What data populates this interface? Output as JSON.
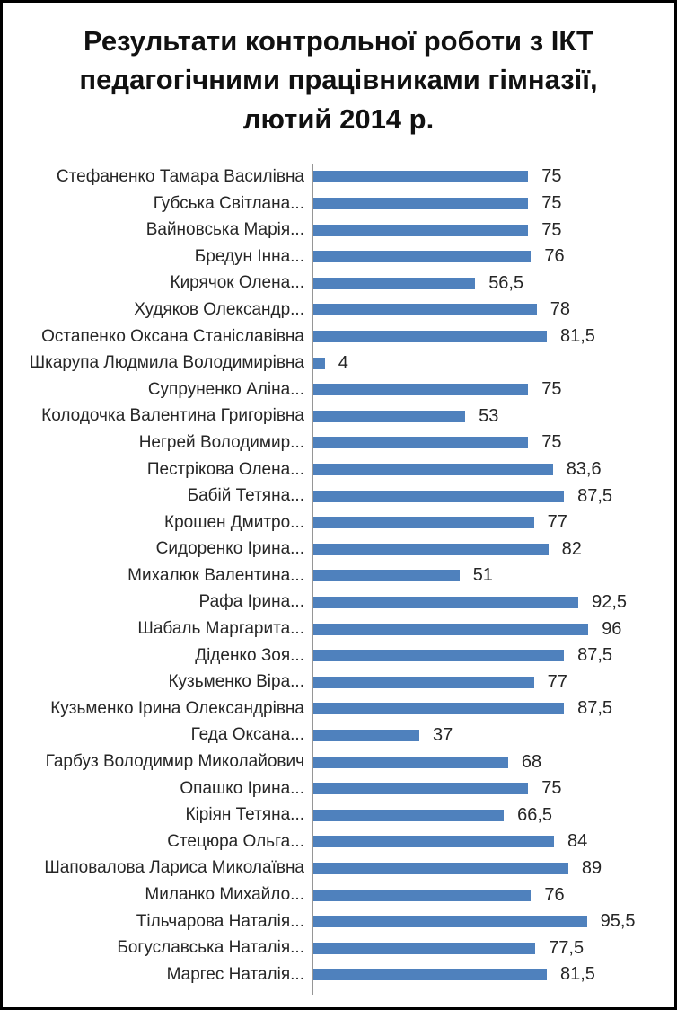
{
  "chart_data": {
    "type": "bar",
    "orientation": "horizontal",
    "title": "Результати контрольної роботи з ІКТ педагогічними працівниками гімназії, лютий 2014 р.",
    "categories": [
      "Стефаненко Тамара Василівна",
      "Губська Світлана...",
      "Вайновська Марія...",
      "Бредун Інна...",
      "Кирячок Олена...",
      "Худяков Олександр...",
      "Остапенко Оксана Станіславівна",
      "Шкарупа Людмила Володимирівна",
      "Супруненко Аліна...",
      "Колодочка Валентина Григорівна",
      "Негрей Володимир...",
      "Пестрікова Олена...",
      "Бабій Тетяна...",
      "Крошен Дмитро...",
      "Сидоренко Ірина...",
      "Михалюк Валентина...",
      "Рафа Ірина...",
      "Шабаль Маргарита...",
      "Діденко Зоя...",
      "Кузьменко Віра...",
      "Кузьменко Ірина Олександрівна",
      "Геда Оксана...",
      "Гарбуз Володимир Миколайович",
      "Опашко Ірина...",
      "Кіріян Тетяна...",
      "Стецюра Ольга...",
      "Шаповалова Лариса Миколаївна",
      "Миланко Михайло...",
      "Тільчарова Наталія...",
      "Богуславська Наталія...",
      "Маргес Наталія..."
    ],
    "values": [
      75,
      75,
      75,
      76,
      56.5,
      78,
      81.5,
      4,
      75,
      53,
      75,
      83.6,
      87.5,
      77,
      82,
      51,
      92.5,
      96,
      87.5,
      77,
      87.5,
      37,
      68,
      75,
      66.5,
      84,
      89,
      76,
      95.5,
      77.5,
      81.5
    ],
    "value_labels": [
      "75",
      "75",
      "75",
      "76",
      "56,5",
      "78",
      "81,5",
      "4",
      "75",
      "53",
      "75",
      "83,6",
      "87,5",
      "77",
      "82",
      "51",
      "92,5",
      "96",
      "87,5",
      "77",
      "87,5",
      "37",
      "68",
      "75",
      "66,5",
      "84",
      "89",
      "76",
      "95,5",
      "77,5",
      "81,5"
    ],
    "xlim": [
      0,
      100
    ],
    "bar_color": "#4F81BD",
    "axis_color": "#969696",
    "text_color": "#262626",
    "grid": false,
    "legend": false,
    "xlabel": "",
    "ylabel": ""
  }
}
